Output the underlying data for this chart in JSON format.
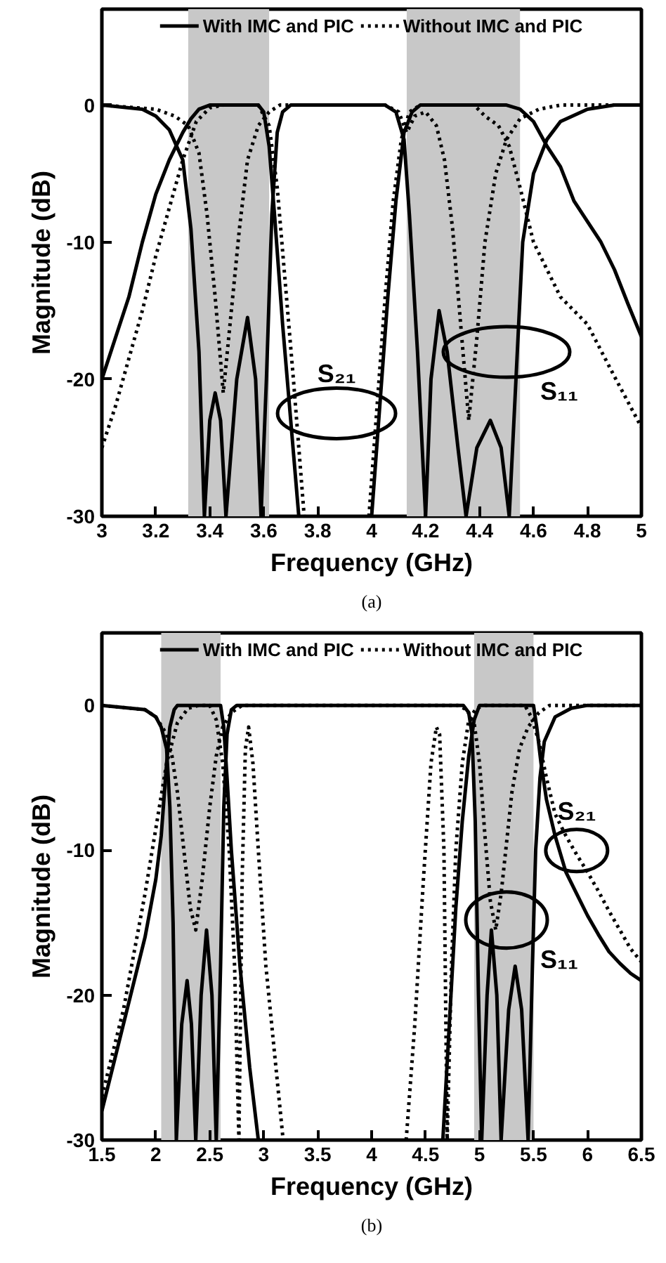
{
  "chart_data": [
    {
      "type": "line",
      "xlabel": "Frequency (GHz)",
      "ylabel": "Magnitude (dB)",
      "xlim": [
        3,
        5
      ],
      "ylim": [
        -30,
        7
      ],
      "xticks": [
        3,
        3.2,
        3.4,
        3.6,
        3.8,
        4,
        4.2,
        4.4,
        4.6,
        4.8,
        5
      ],
      "yticks": [
        0,
        -10,
        -20,
        -30
      ],
      "legend": "top",
      "bands": [
        {
          "axis": "x",
          "from": 3.32,
          "to": 3.62,
          "color": "#c8c8c8"
        },
        {
          "axis": "x",
          "from": 4.13,
          "to": 4.55,
          "color": "#c8c8c8"
        }
      ],
      "annotations": [
        "S₂₁",
        "S₁₁",
        "(a)"
      ],
      "series": [
        {
          "name": "With IMC and PIC",
          "color": "#000000",
          "line_style": "solid",
          "x": [
            3,
            3.05,
            3.1,
            3.15,
            3.2,
            3.25,
            3.3,
            3.33,
            3.36,
            3.4,
            3.5,
            3.58,
            3.6,
            3.62,
            3.64,
            3.67,
            3.7,
            3.73,
            3.85,
            4.0,
            4.03,
            4.06,
            4.09,
            4.12,
            4.15,
            4.18,
            4.3,
            4.5,
            4.55,
            4.6,
            4.65,
            4.7,
            4.75,
            4.8,
            4.85,
            4.9,
            4.95,
            5.0
          ],
          "values": [
            -20,
            -17,
            -14,
            -10,
            -6.5,
            -4,
            -2,
            -1,
            -0.3,
            0,
            0,
            0,
            -0.5,
            -3,
            -8,
            -16,
            -23,
            -30,
            null,
            -30,
            -22,
            -14,
            -7,
            -2,
            -0.5,
            0,
            0,
            0,
            -0.3,
            -1.2,
            -3,
            -4.5,
            -7,
            -8.5,
            -10,
            -12,
            -14.5,
            -16.9
          ]
        },
        {
          "color": "#000000",
          "line_style": "solid",
          "x": [
            3,
            3.15,
            3.2,
            3.25,
            3.3,
            3.33,
            3.36,
            3.38,
            3.4,
            3.42,
            3.44,
            3.46,
            3.5,
            3.54,
            3.57,
            3.59,
            3.61,
            3.63,
            3.65,
            3.67,
            3.7,
            4.05,
            4.09,
            4.12,
            4.14,
            4.17,
            4.2,
            4.22,
            4.25,
            4.28,
            4.32,
            4.35,
            4.39,
            4.44,
            4.48,
            4.51,
            4.54,
            4.56,
            4.6,
            4.65,
            4.7,
            4.8,
            4.9,
            5.0
          ],
          "values": [
            0,
            -0.3,
            -0.8,
            -1.8,
            -4,
            -9,
            -18,
            -30,
            -23,
            -21,
            -23,
            -30,
            -20,
            -15.5,
            -20,
            -30,
            -20,
            -8,
            -2,
            -0.5,
            0,
            0,
            -0.5,
            -2.5,
            -8,
            -18,
            -30,
            -20,
            -15,
            -18,
            -25,
            -30,
            -25,
            -23,
            -25,
            -30,
            -18,
            -10,
            -5,
            -2.5,
            -1.2,
            -0.3,
            0,
            0
          ]
        },
        {
          "name": "Without IMC and PIC",
          "color": "#000000",
          "line_style": "dotted",
          "x": [
            3,
            3.05,
            3.1,
            3.15,
            3.2,
            3.25,
            3.3,
            3.35,
            3.4,
            3.45,
            3.58,
            3.62,
            3.65,
            3.68,
            3.71,
            3.75,
            3.87,
            3.99,
            4.02,
            4.05,
            4.08,
            4.11,
            4.14,
            4.18,
            4.38,
            4.42,
            4.47,
            4.51,
            4.55,
            4.6,
            4.7,
            4.8,
            4.9,
            5.0
          ],
          "values": [
            -25,
            -22,
            -18.5,
            -15,
            -11,
            -7.5,
            -4,
            -1.2,
            -0.2,
            0,
            0,
            -1.5,
            -6,
            -13,
            -20,
            -30,
            null,
            -30,
            -22,
            -14,
            -7,
            -2.5,
            -0.5,
            0,
            0,
            -0.8,
            -1.5,
            -3,
            -6,
            -10,
            -14,
            -16,
            -19.8,
            -23.5
          ]
        },
        {
          "color": "#000000",
          "line_style": "dotted",
          "x": [
            3,
            3.2,
            3.27,
            3.32,
            3.36,
            3.39,
            3.42,
            3.45,
            3.48,
            3.51,
            3.54,
            3.58,
            3.62,
            3.66,
            4.05,
            4.1,
            4.13,
            4.16,
            4.2,
            4.24,
            4.27,
            4.3,
            4.33,
            4.36,
            4.39,
            4.42,
            4.46,
            4.5,
            4.55,
            4.62,
            4.7,
            5.0
          ],
          "values": [
            0,
            -0.3,
            -0.8,
            -1.5,
            -3.5,
            -8,
            -14,
            -21,
            -15,
            -9,
            -4,
            -1.5,
            -0.5,
            0,
            0,
            -0.5,
            -2,
            -0.8,
            -0.5,
            -1.5,
            -4,
            -9,
            -16,
            -23,
            -17,
            -10,
            -5,
            -2.5,
            -1,
            -0.3,
            0,
            0
          ]
        }
      ]
    },
    {
      "type": "line",
      "xlabel": "Frequency (GHz)",
      "ylabel": "Magnitude (dB)",
      "xlim": [
        1.5,
        6.5
      ],
      "ylim": [
        -30,
        5
      ],
      "xticks": [
        1.5,
        2,
        2.5,
        3,
        3.5,
        4,
        4.5,
        5,
        5.5,
        6,
        6.5
      ],
      "yticks": [
        0,
        -10,
        -20,
        -30
      ],
      "legend": "top",
      "bands": [
        {
          "axis": "x",
          "from": 2.05,
          "to": 2.6,
          "color": "#c8c8c8"
        },
        {
          "axis": "x",
          "from": 4.95,
          "to": 5.5,
          "color": "#c8c8c8"
        }
      ],
      "annotations": [
        "S₂₁",
        "S₁₁",
        "(b)"
      ],
      "series": [
        {
          "name": "With IMC and PIC",
          "color": "#000000",
          "line_style": "solid",
          "x": [
            1.5,
            1.6,
            1.7,
            1.8,
            1.9,
            1.95,
            2.0,
            2.05,
            2.1,
            2.13,
            2.17,
            2.2,
            2.6,
            2.63,
            2.66,
            2.7,
            2.78,
            2.87,
            2.95,
            3.8,
            4.66,
            4.72,
            4.78,
            4.84,
            4.9,
            4.95,
            5.0,
            5.5,
            5.53,
            5.57,
            5.62,
            5.7,
            5.8,
            5.9,
            6.0,
            6.1,
            6.2,
            6.3,
            6.4,
            6.5
          ],
          "values": [
            -28,
            -25,
            -22,
            -19,
            -16,
            -14,
            -12,
            -9,
            -4,
            -1.5,
            -0.3,
            0,
            0,
            -1.5,
            -5,
            -10,
            -18,
            -25,
            -30,
            null,
            -30,
            -22,
            -14,
            -8,
            -3.5,
            -1,
            0,
            0,
            -1.5,
            -4,
            -6.5,
            -9,
            -11.5,
            -13,
            -14.5,
            -15.8,
            -17,
            -17.8,
            -18.5,
            -19
          ]
        },
        {
          "color": "#000000",
          "line_style": "solid",
          "x": [
            1.5,
            1.9,
            2.0,
            2.05,
            2.1,
            2.13,
            2.16,
            2.19,
            2.24,
            2.29,
            2.33,
            2.37,
            2.42,
            2.47,
            2.52,
            2.56,
            2.6,
            2.63,
            2.66,
            2.7,
            2.75,
            4.85,
            4.9,
            4.93,
            4.96,
            4.99,
            5.02,
            5.07,
            5.11,
            5.16,
            5.2,
            5.27,
            5.33,
            5.39,
            5.45,
            5.49,
            5.52,
            5.56,
            5.6,
            5.7,
            5.85,
            6.0,
            6.5
          ],
          "values": [
            0,
            -0.3,
            -0.8,
            -1.5,
            -3,
            -7,
            -15,
            -30,
            -22,
            -19,
            -22,
            -30,
            -20,
            -15.5,
            -20,
            -30,
            -18,
            -7,
            -2,
            -0.3,
            0,
            0,
            -0.5,
            -2,
            -8,
            -20,
            -30,
            -20,
            -15.5,
            -20,
            -30,
            -21,
            -18,
            -21,
            -30,
            -18,
            -10,
            -5,
            -2.5,
            -0.8,
            -0.2,
            0,
            0
          ]
        },
        {
          "name": "Without IMC and PIC",
          "color": "#000000",
          "line_style": "dotted",
          "x": [
            1.5,
            1.6,
            1.7,
            1.8,
            1.9,
            2.0,
            2.1,
            2.2,
            2.3,
            2.4,
            2.5,
            2.56,
            2.62,
            2.68,
            2.73,
            2.77,
            2.8,
            2.83,
            2.86,
            2.9,
            2.95,
            3.02,
            3.1,
            3.18,
            3.75,
            4.32,
            4.4,
            4.48,
            4.55,
            4.6,
            4.63,
            4.67,
            4.7,
            4.74,
            4.78,
            4.84,
            4.9,
            4.97,
            5.05,
            5.42,
            5.48,
            5.55,
            5.62,
            5.7,
            5.8,
            5.9,
            6.0,
            6.1,
            6.2,
            6.3,
            6.4,
            6.5
          ],
          "values": [
            -27,
            -24,
            -21,
            -17,
            -13,
            -8.5,
            -4,
            -1.2,
            -0.2,
            0,
            0,
            -1,
            -4,
            -10,
            -18,
            -30,
            -12,
            -3,
            -1.5,
            -4,
            -10,
            -18,
            -24,
            -30,
            null,
            -30,
            -22,
            -12,
            -4,
            -1.5,
            -2,
            -10,
            -30,
            -18,
            -10,
            -4,
            -1,
            -0.2,
            0,
            0,
            -0.8,
            -2.5,
            -5,
            -7.5,
            -9,
            -10.3,
            -11.5,
            -12.8,
            -14.2,
            -15.5,
            -16.8,
            -17.7
          ]
        },
        {
          "color": "#000000",
          "line_style": "dotted",
          "x": [
            1.5,
            1.9,
            2.0,
            2.1,
            2.15,
            2.2,
            2.26,
            2.32,
            2.37,
            2.43,
            2.5,
            2.56,
            2.62,
            2.7,
            2.8,
            4.8,
            4.88,
            4.95,
            5.0,
            5.05,
            5.1,
            5.15,
            5.2,
            5.25,
            5.3,
            5.37,
            5.45,
            5.55,
            5.65,
            6.5
          ],
          "values": [
            0,
            -0.3,
            -0.8,
            -2,
            -3.5,
            -6,
            -10,
            -14,
            -15.5,
            -12,
            -7,
            -3.5,
            -1.5,
            -0.5,
            0,
            0,
            -0.3,
            -1.2,
            -4,
            -9,
            -13.5,
            -15.5,
            -13,
            -9.5,
            -6,
            -3,
            -1.5,
            -0.5,
            0,
            0
          ]
        }
      ]
    }
  ]
}
